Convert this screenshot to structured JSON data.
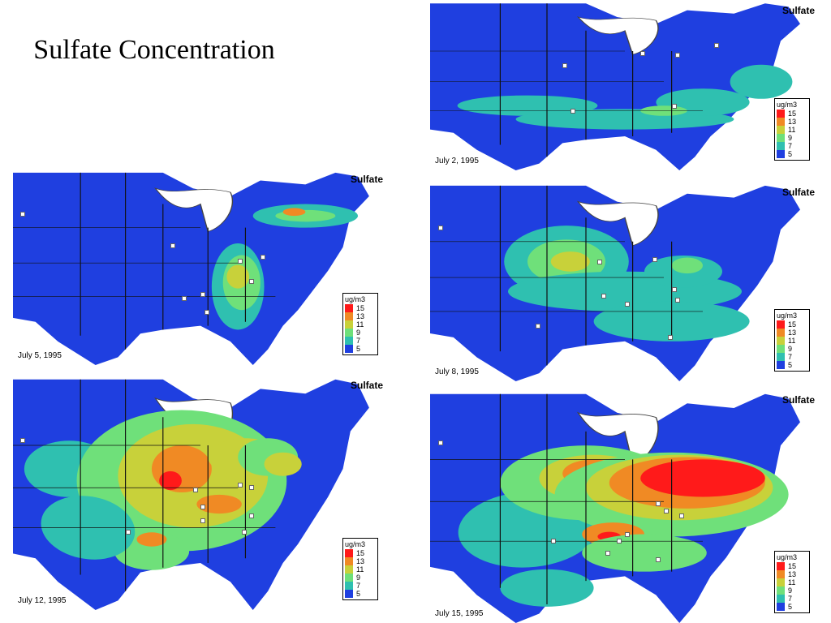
{
  "title": "Sulfate Concentration",
  "legend": {
    "unit": "ug/m3",
    "levels": [
      {
        "label": "15",
        "color": "#ff1a1a"
      },
      {
        "label": "13",
        "color": "#f08a24"
      },
      {
        "label": "11",
        "color": "#c8d13a"
      },
      {
        "label": "9",
        "color": "#6fe07a"
      },
      {
        "label": "7",
        "color": "#2fc0b0"
      },
      {
        "label": "5",
        "color": "#1f3fe0"
      }
    ]
  },
  "panels": [
    {
      "id": "jul2",
      "date": "July 2, 1995",
      "label": "Sulfate",
      "pos": [
        530,
        0,
        480,
        210
      ]
    },
    {
      "id": "jul5",
      "date": "July 5, 1995",
      "label": "Sulfate",
      "pos": [
        16,
        208,
        462,
        242
      ]
    },
    {
      "id": "jul8",
      "date": "July 8, 1995",
      "label": "Sulfate",
      "pos": [
        530,
        224,
        480,
        246
      ]
    },
    {
      "id": "jul12",
      "date": "July 12, 1995",
      "label": "Sulfate",
      "pos": [
        16,
        462,
        462,
        290
      ]
    },
    {
      "id": "jul15",
      "date": "July 15, 1995",
      "label": "Sulfate",
      "pos": [
        530,
        480,
        480,
        288
      ]
    }
  ]
}
